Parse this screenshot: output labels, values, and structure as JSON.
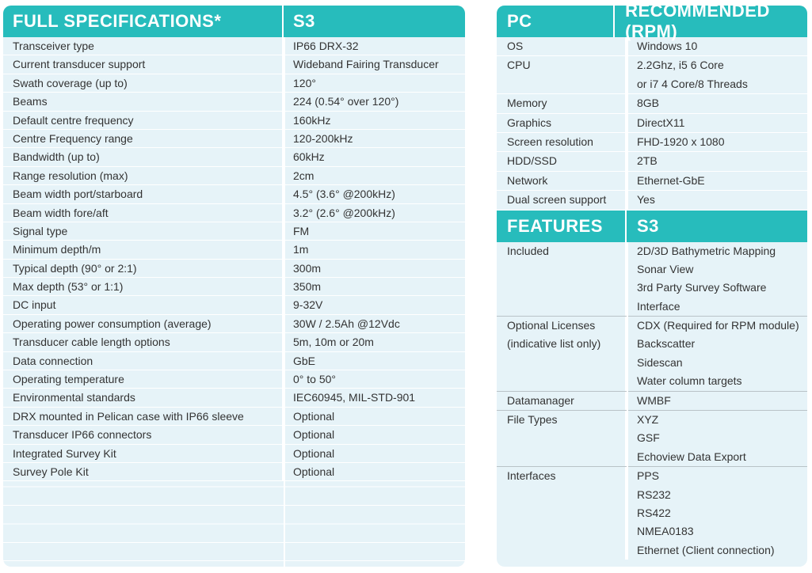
{
  "specs": {
    "header": [
      "FULL SPECIFICATIONS*",
      "S3"
    ],
    "rows": [
      [
        "Transceiver type",
        "IP66 DRX-32"
      ],
      [
        "Current transducer support",
        "Wideband Fairing Transducer"
      ],
      [
        "Swath coverage (up to)",
        "120°"
      ],
      [
        "Beams",
        "224 (0.54° over 120°)"
      ],
      [
        "Default centre frequency",
        "160kHz"
      ],
      [
        "Centre Frequency range",
        "120-200kHz"
      ],
      [
        "Bandwidth (up to)",
        "60kHz"
      ],
      [
        "Range resolution (max)",
        "2cm"
      ],
      [
        "Beam width port/starboard",
        "4.5° (3.6° @200kHz)"
      ],
      [
        "Beam width fore/aft",
        "3.2° (2.6° @200kHz)"
      ],
      [
        "Signal type",
        "FM"
      ],
      [
        "Minimum depth/m",
        "1m"
      ],
      [
        "Typical depth (90° or 2:1)",
        "300m"
      ],
      [
        "Max depth (53° or 1:1)",
        "350m"
      ],
      [
        "DC input",
        "9-32V"
      ],
      [
        "Operating power consumption (average)",
        "30W / 2.5Ah @12Vdc"
      ],
      [
        "Transducer cable length options",
        "5m, 10m or 20m"
      ],
      [
        "Data connection",
        "GbE"
      ],
      [
        "Operating temperature",
        "0° to 50°"
      ],
      [
        "Environmental standards",
        "IEC60945, MIL-STD-901"
      ],
      [
        "DRX mounted in Pelican case with IP66 sleeve",
        "Optional"
      ],
      [
        "Transducer IP66 connectors",
        "Optional"
      ],
      [
        "Integrated Survey Kit",
        "Optional"
      ],
      [
        "Survey Pole Kit",
        "Optional"
      ]
    ]
  },
  "pc": {
    "header": [
      "PC",
      "RECOMMENDED (RPM)"
    ],
    "rows": [
      {
        "label": [
          "OS"
        ],
        "values": [
          "Windows 10"
        ]
      },
      {
        "label": [
          "CPU"
        ],
        "values": [
          "2.2Ghz, i5 6 Core",
          "or i7 4 Core/8 Threads"
        ]
      },
      {
        "label": [
          "Memory"
        ],
        "values": [
          "8GB"
        ]
      },
      {
        "label": [
          "Graphics"
        ],
        "values": [
          "DirectX11"
        ]
      },
      {
        "label": [
          "Screen resolution"
        ],
        "values": [
          "FHD-1920 x 1080"
        ]
      },
      {
        "label": [
          "HDD/SSD"
        ],
        "values": [
          "2TB"
        ]
      },
      {
        "label": [
          "Network"
        ],
        "values": [
          "Ethernet-GbE"
        ]
      },
      {
        "label": [
          "Dual screen support"
        ],
        "values": [
          "Yes"
        ]
      }
    ]
  },
  "features": {
    "header": [
      "FEATURES",
      "S3"
    ],
    "rows": [
      {
        "label": [
          "Included"
        ],
        "values": [
          "2D/3D Bathymetric Mapping",
          "Sonar View",
          "3rd Party Survey Software",
          "Interface"
        ]
      },
      {
        "label": [
          "Optional Licenses",
          "(indicative list only)"
        ],
        "values": [
          "CDX (Required for RPM module)",
          "Backscatter",
          "Sidescan",
          "Water column targets"
        ]
      },
      {
        "label": [
          "Datamanager"
        ],
        "values": [
          "WMBF"
        ]
      },
      {
        "label": [
          "File Types"
        ],
        "values": [
          "XYZ",
          "GSF",
          "Echoview Data Export"
        ]
      },
      {
        "label": [
          "Interfaces"
        ],
        "values": [
          "PPS",
          "RS232",
          "RS422",
          "NMEA0183",
          "Ethernet (Client connection)"
        ]
      }
    ]
  }
}
